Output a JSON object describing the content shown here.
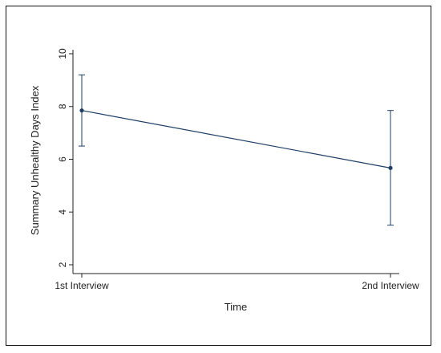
{
  "chart_data": {
    "type": "line",
    "title": "",
    "xlabel": "Time",
    "ylabel": "Summary Unhealthy Days Index",
    "categories": [
      "1st Interview",
      "2nd Interview"
    ],
    "ylim": [
      2,
      10
    ],
    "yticks": [
      2,
      4,
      6,
      8,
      10
    ],
    "series": [
      {
        "values": [
          7.85,
          5.67
        ],
        "ci_lower": [
          6.5,
          3.5
        ],
        "ci_upper": [
          9.2,
          7.85
        ]
      }
    ],
    "grid": false,
    "legend": "none",
    "line_color": "#1f3f66"
  }
}
